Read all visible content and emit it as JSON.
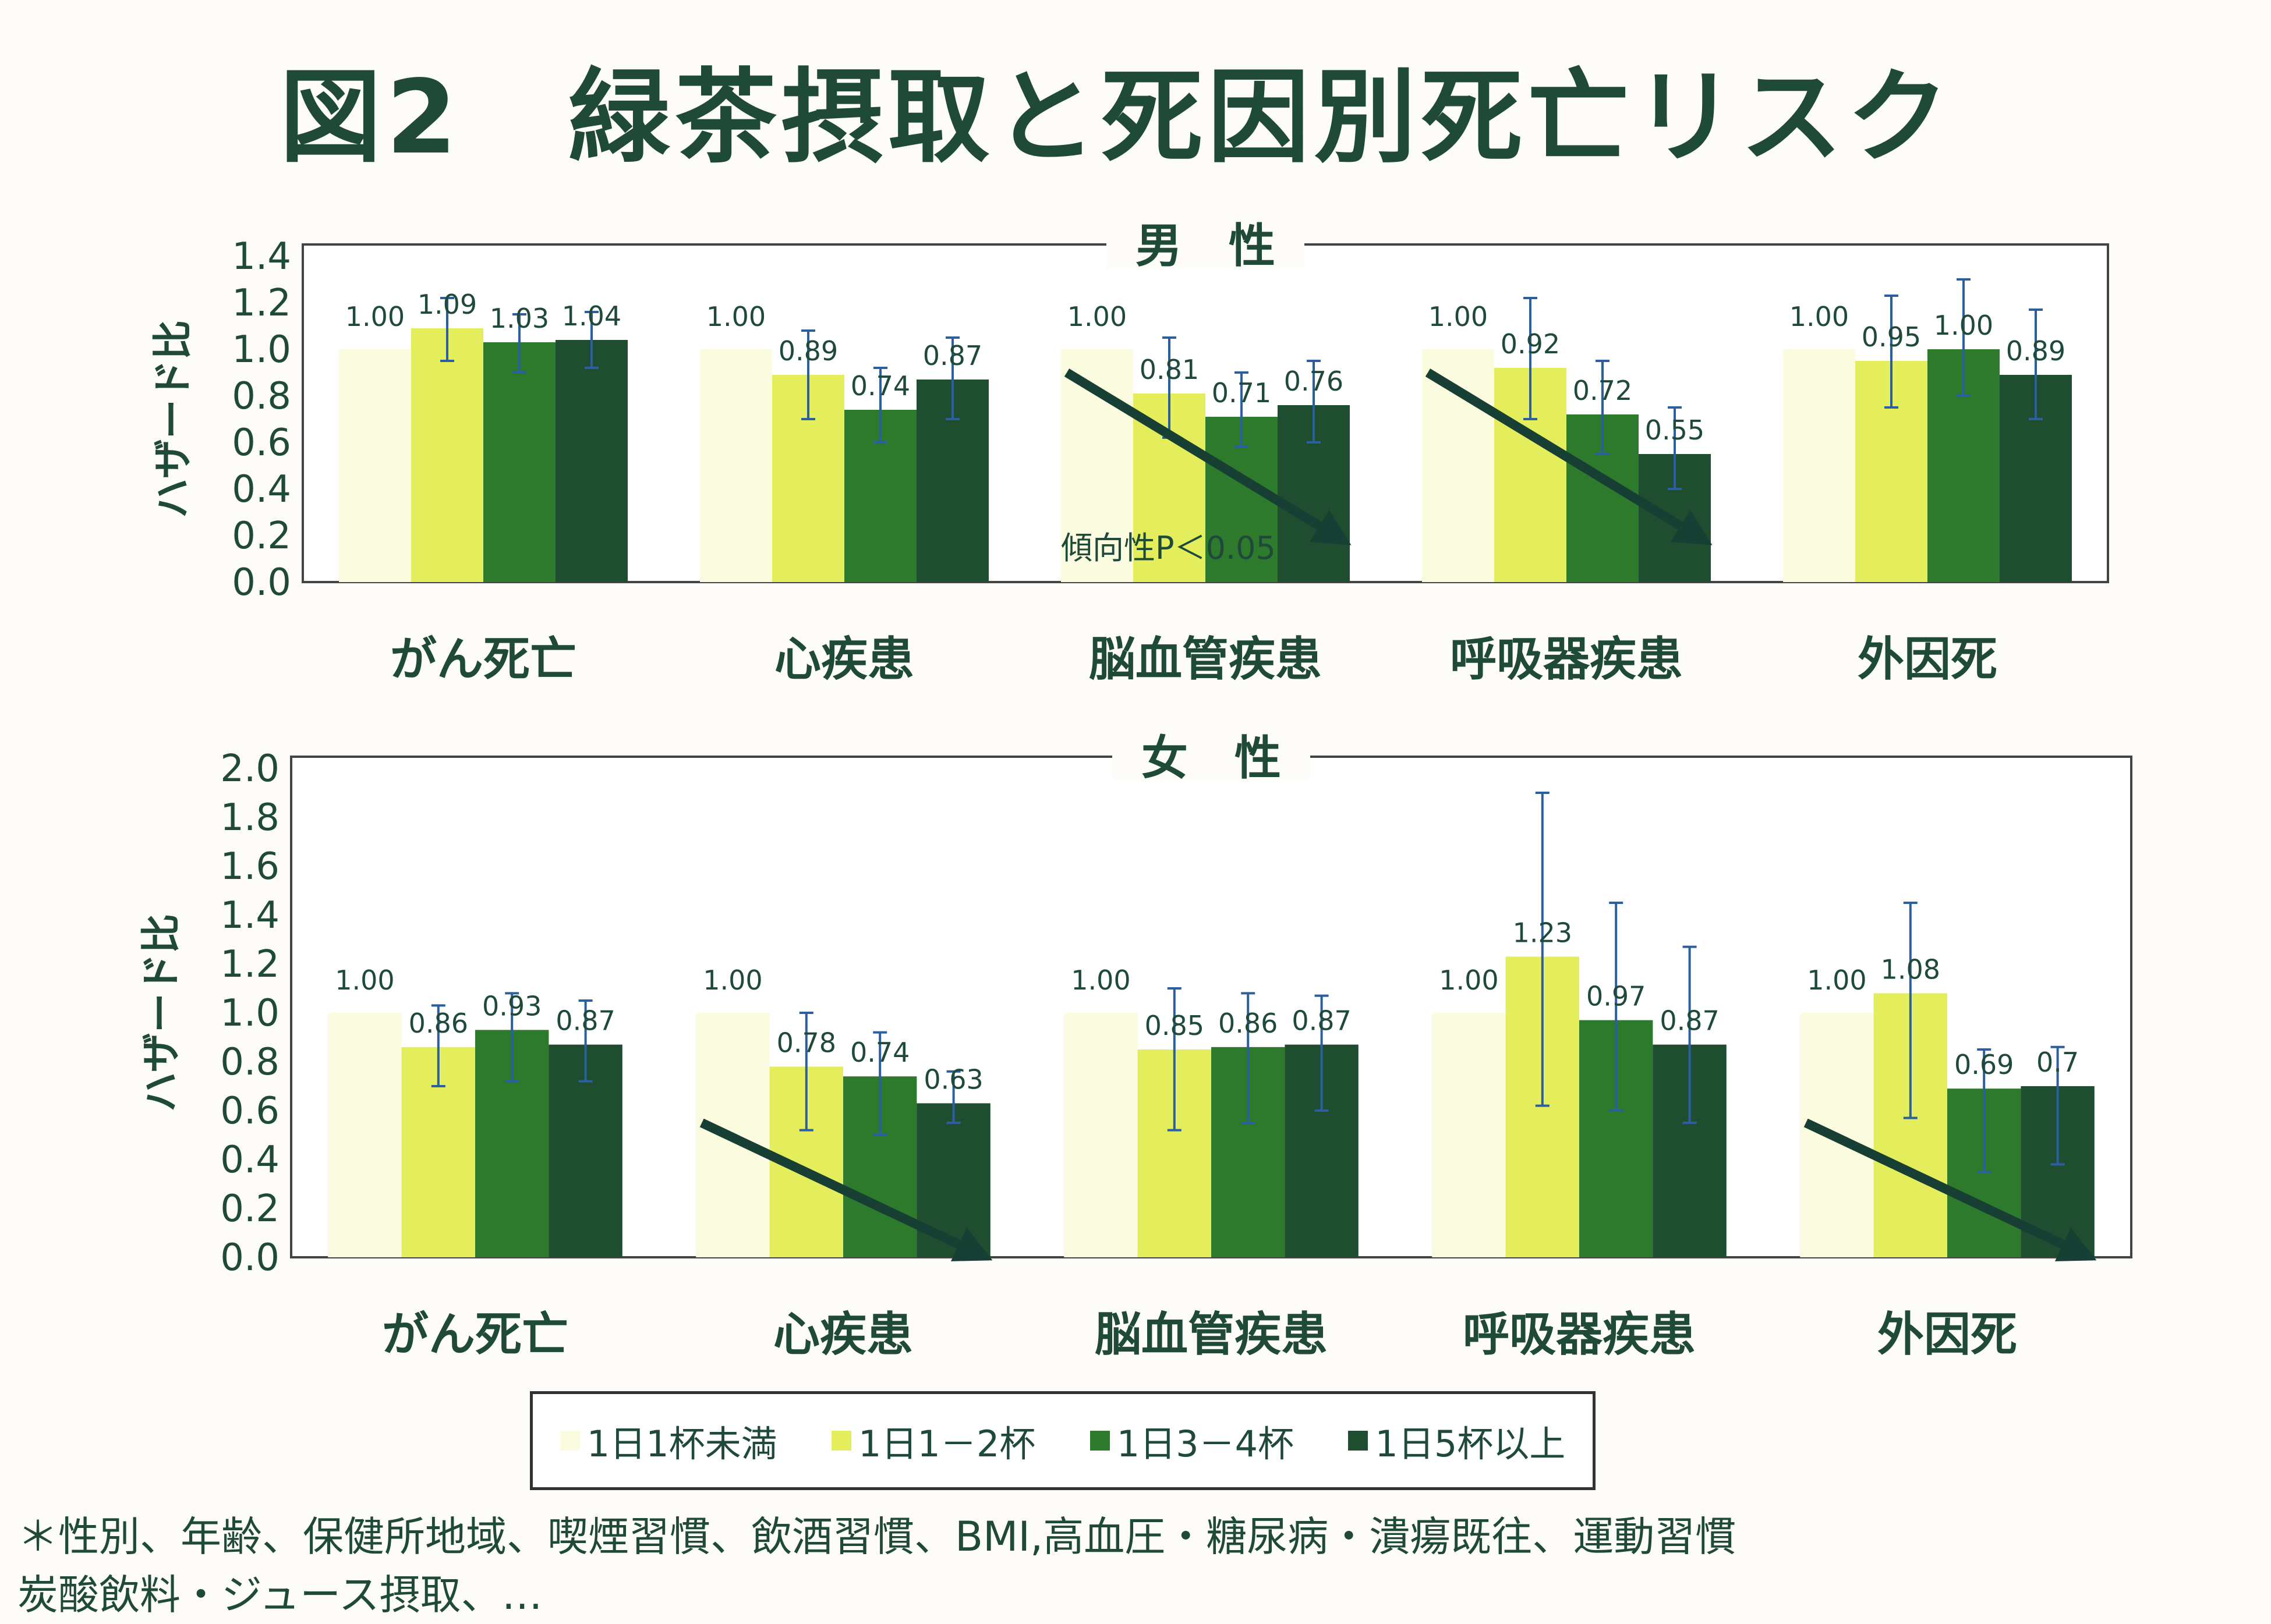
{
  "title": "図2　緑茶摂取と死因別死亡リスク",
  "legend": [
    {
      "label": "1日1杯未満",
      "color": "#fbfbe0"
    },
    {
      "label": "1日1－2杯",
      "color": "#e4ee5c"
    },
    {
      "label": "1日3－4杯",
      "color": "#2e7a2c"
    },
    {
      "label": "1日5杯以上",
      "color": "#1e4d30"
    }
  ],
  "footnote": {
    "line1": "＊性別、年齢、保健所地域、喫煙習慣、飲酒習慣、BMI,高血圧・糖尿病・潰瘍既往、運動習慣",
    "line2": "炭酸飲料・ジュース摂取、…"
  },
  "chart_data": [
    {
      "type": "bar",
      "title": "男　性",
      "ylabel": "ハザード比",
      "ylim": [
        0,
        1.4
      ],
      "yticks": [
        "0.0",
        "0.2",
        "0.4",
        "0.6",
        "0.8",
        "1.0",
        "1.2",
        "1.4"
      ],
      "categories": [
        "がん死亡",
        "心疾患",
        "脳血管疾患",
        "呼吸器疾患",
        "外因死"
      ],
      "series": [
        {
          "name": "1日1杯未満",
          "values": [
            1.0,
            1.0,
            1.0,
            1.0,
            1.0
          ],
          "labels": [
            "1.00",
            "1.00",
            "1.00",
            "1.00",
            "1.00"
          ]
        },
        {
          "name": "1日1－2杯",
          "values": [
            1.09,
            0.89,
            0.81,
            0.92,
            0.95
          ],
          "labels": [
            "1.09",
            "0.89",
            "0.81",
            "0.92",
            "0.95"
          ],
          "ci": [
            [
              0.95,
              1.22
            ],
            [
              0.7,
              1.08
            ],
            [
              0.62,
              1.05
            ],
            [
              0.7,
              1.22
            ],
            [
              0.75,
              1.23
            ]
          ]
        },
        {
          "name": "1日3－4杯",
          "values": [
            1.03,
            0.74,
            0.71,
            0.72,
            1.0
          ],
          "labels": [
            "1.03",
            "0.74",
            "0.71",
            "0.72",
            "1.00"
          ],
          "ci": [
            [
              0.9,
              1.15
            ],
            [
              0.6,
              0.92
            ],
            [
              0.58,
              0.9
            ],
            [
              0.55,
              0.95
            ],
            [
              0.8,
              1.3
            ]
          ]
        },
        {
          "name": "1日5杯以上",
          "values": [
            1.04,
            0.87,
            0.76,
            0.55,
            0.89
          ],
          "labels": [
            "1.04",
            "0.87",
            "0.76",
            "0.55",
            "0.89"
          ],
          "ci": [
            [
              0.92,
              1.16
            ],
            [
              0.7,
              1.05
            ],
            [
              0.6,
              0.95
            ],
            [
              0.4,
              0.75
            ],
            [
              0.7,
              1.17
            ]
          ]
        }
      ],
      "trend_arrows": [
        "脳血管疾患",
        "呼吸器疾患"
      ],
      "annotation": "傾向性P＜0.05"
    },
    {
      "type": "bar",
      "title": "女　性",
      "ylabel": "ハザード比",
      "ylim": [
        0,
        2.0
      ],
      "yticks": [
        "0.0",
        "0.2",
        "0.4",
        "0.6",
        "0.8",
        "1.0",
        "1.2",
        "1.4",
        "1.6",
        "1.8",
        "2.0"
      ],
      "categories": [
        "がん死亡",
        "心疾患",
        "脳血管疾患",
        "呼吸器疾患",
        "外因死"
      ],
      "series": [
        {
          "name": "1日1杯未満",
          "values": [
            1.0,
            1.0,
            1.0,
            1.0,
            1.0
          ],
          "labels": [
            "1.00",
            "1.00",
            "1.00",
            "1.00",
            "1.00"
          ]
        },
        {
          "name": "1日1－2杯",
          "values": [
            0.86,
            0.78,
            0.85,
            1.23,
            1.08
          ],
          "labels": [
            "0.86",
            "0.78",
            "0.85",
            "1.23",
            "1.08"
          ],
          "ci": [
            [
              0.7,
              1.03
            ],
            [
              0.52,
              1.0
            ],
            [
              0.52,
              1.1
            ],
            [
              0.62,
              1.9
            ],
            [
              0.57,
              1.45
            ]
          ]
        },
        {
          "name": "1日3－4杯",
          "values": [
            0.93,
            0.74,
            0.86,
            0.97,
            0.69
          ],
          "labels": [
            "0.93",
            "0.74",
            "0.86",
            "0.97",
            "0.69"
          ],
          "ci": [
            [
              0.72,
              1.08
            ],
            [
              0.5,
              0.92
            ],
            [
              0.55,
              1.08
            ],
            [
              0.6,
              1.45
            ],
            [
              0.35,
              0.85
            ]
          ]
        },
        {
          "name": "1日5杯以上",
          "values": [
            0.87,
            0.63,
            0.87,
            0.87,
            0.7
          ],
          "labels": [
            "0.87",
            "0.63",
            "0.87",
            "0.87",
            "0.7"
          ],
          "ci": [
            [
              0.72,
              1.05
            ],
            [
              0.55,
              0.76
            ],
            [
              0.6,
              1.07
            ],
            [
              0.55,
              1.27
            ],
            [
              0.38,
              0.86
            ]
          ]
        }
      ],
      "trend_arrows": [
        "心疾患",
        "外因死"
      ]
    }
  ]
}
